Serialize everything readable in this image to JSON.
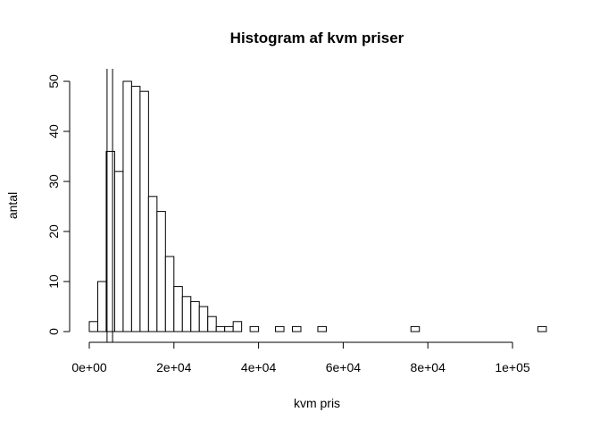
{
  "chart_data": {
    "type": "bar",
    "title": "Histogram af kvm priser",
    "xlabel": "kvm pris",
    "ylabel": "antal",
    "bin_width": 2000,
    "bin_start": 0,
    "counts": [
      2,
      10,
      36,
      32,
      50,
      49,
      48,
      27,
      24,
      15,
      9,
      7,
      6,
      5,
      3,
      1,
      1,
      2,
      0,
      1,
      0,
      0,
      1,
      0,
      1,
      0,
      0,
      1,
      0,
      0,
      0,
      0,
      0,
      0,
      0,
      0,
      0,
      0,
      1,
      0,
      0,
      0,
      0,
      0,
      0,
      0,
      0,
      0,
      0,
      0,
      0,
      0,
      0,
      1
    ],
    "xlim": [
      0,
      108000
    ],
    "ylim": [
      0,
      50
    ],
    "x_ticks": [
      {
        "value": 0,
        "label": "0e+00"
      },
      {
        "value": 20000,
        "label": "2e+04"
      },
      {
        "value": 40000,
        "label": "4e+04"
      },
      {
        "value": 60000,
        "label": "6e+04"
      },
      {
        "value": 80000,
        "label": "8e+04"
      },
      {
        "value": 100000,
        "label": "1e+05"
      }
    ],
    "y_ticks": [
      {
        "value": 0,
        "label": "0"
      },
      {
        "value": 10,
        "label": "10"
      },
      {
        "value": 20,
        "label": "20"
      },
      {
        "value": 30,
        "label": "30"
      },
      {
        "value": 40,
        "label": "40"
      },
      {
        "value": 50,
        "label": "50"
      }
    ],
    "vertical_lines": [
      4200,
      5500
    ],
    "grid": false,
    "legend": "none"
  }
}
